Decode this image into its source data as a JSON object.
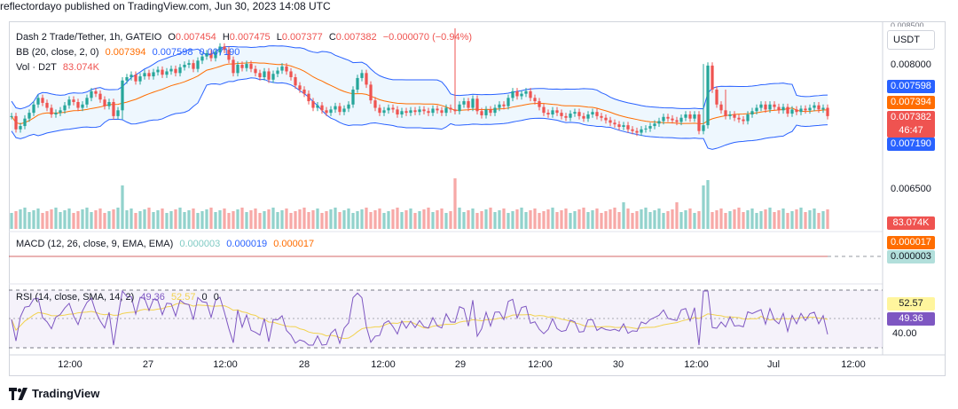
{
  "header": {
    "text": "reflectordayo published on TradingView.com, Jun 30, 2023 14:08 UTC"
  },
  "symbol": {
    "name": "Dash 2 Trade/Tether, 1h, GATEIO",
    "ohlc": {
      "o_label": "O",
      "o": "0.007454",
      "h_label": "H",
      "h": "0.007475",
      "l_label": "L",
      "l": "0.007377",
      "c_label": "C",
      "c": "0.007382",
      "chg": "−0.000070 (−0.94%)"
    }
  },
  "bb": {
    "label": "BB (20, close, 2, 0)",
    "basis": "0.007394",
    "upper": "0.007598",
    "lower": "0.007190"
  },
  "vol": {
    "label": "Vol · D2T",
    "value": "83.074K"
  },
  "macd": {
    "label": "MACD (12, 26, close, 9, EMA, EMA)",
    "hist": "0.000003",
    "macd": "0.000019",
    "signal": "0.000017"
  },
  "rsi": {
    "label": "RSI (14, close, SMA, 14, 2)",
    "rsi": "49.36",
    "sma": "52.57",
    "extra1": "0",
    "extra2": "0"
  },
  "price_axis": {
    "currency": "USDT",
    "top_partial": "0.008500",
    "p8000": "0.008000",
    "p6500": "0.006500",
    "upper_box": "0.007598",
    "basis_box": "0.007394",
    "last_box": "0.007382",
    "countdown": "46:47",
    "lower_box": "0.007190",
    "vol_box": "83.074K",
    "macd_box1": "0.000017",
    "macd_box2": "0.000003",
    "rsi_box1": "52.57",
    "rsi_box2": "49.36",
    "rsi40": "40.00"
  },
  "x_axis": [
    "12:00",
    "27",
    "12:00",
    "28",
    "12:00",
    "29",
    "12:00",
    "30",
    "12:00",
    "Jul",
    "12:00"
  ],
  "colors": {
    "up": "#26a69a",
    "down": "#ef5350",
    "bb_band": "#2962ff",
    "bb_basis": "#ff6d00",
    "rsi_line": "#7e57c2",
    "rsi_sma": "#f2d24f",
    "rsi_fill": "#7e57c2"
  },
  "footer": {
    "brand": "TradingView"
  },
  "chart_data": {
    "type": "candlestick",
    "title": "Dash 2 Trade/Tether, 1h, GATEIO",
    "last_close": 0.007382,
    "ylim_visible": [
      0.0062,
      0.0086
    ],
    "candles_close": [
      0.00738,
      0.00722,
      0.00726,
      0.00735,
      0.00742,
      0.00752,
      0.0076,
      0.00754,
      0.00748,
      0.0074,
      0.00742,
      0.00745,
      0.00751,
      0.00758,
      0.00755,
      0.00748,
      0.00752,
      0.0076,
      0.00768,
      0.00765,
      0.00758,
      0.0075,
      0.00755,
      0.00738,
      0.00745,
      0.00781,
      0.00785,
      0.00788,
      0.0078,
      0.00786,
      0.0079,
      0.00786,
      0.00791,
      0.00794,
      0.00788,
      0.00792,
      0.00795,
      0.0079,
      0.00797,
      0.008,
      0.00802,
      0.00795,
      0.00805,
      0.0081,
      0.00814,
      0.00808,
      0.00815,
      0.00822,
      0.00818,
      0.00806,
      0.0079,
      0.008,
      0.00796,
      0.00801,
      0.00795,
      0.0079,
      0.00785,
      0.00792,
      0.00782,
      0.00789,
      0.00793,
      0.00798,
      0.00792,
      0.00785,
      0.00775,
      0.0077,
      0.00765,
      0.00756,
      0.00748,
      0.00751,
      0.00745,
      0.00742,
      0.00746,
      0.0075,
      0.00743,
      0.00747,
      0.00752,
      0.0077,
      0.00784,
      0.0079,
      0.00776,
      0.00757,
      0.00748,
      0.00742,
      0.00745,
      0.00748,
      0.00746,
      0.0074,
      0.00744,
      0.00742,
      0.00745,
      0.00743,
      0.00746,
      0.00744,
      0.00742,
      0.00747,
      0.00745,
      0.00742,
      0.00748,
      0.00746,
      0.00744,
      0.00752,
      0.00756,
      0.00748,
      0.00759,
      0.00744,
      0.00739,
      0.00746,
      0.00742,
      0.00748,
      0.00752,
      0.0075,
      0.0076,
      0.00768,
      0.00762,
      0.00765,
      0.00768,
      0.0076,
      0.00756,
      0.00749,
      0.00742,
      0.0074,
      0.00745,
      0.00742,
      0.00738,
      0.00736,
      0.00741,
      0.00743,
      0.00738,
      0.00735,
      0.0074,
      0.00743,
      0.00738,
      0.00736,
      0.00733,
      0.0073,
      0.00728,
      0.00725,
      0.00727,
      0.00722,
      0.0072,
      0.00718,
      0.00722,
      0.00723,
      0.00726,
      0.00729,
      0.00732,
      0.00737,
      0.00735,
      0.00733,
      0.00731,
      0.00736,
      0.0074,
      0.00735,
      0.0074,
      0.0072,
      0.00727,
      0.00799,
      0.0077,
      0.00752,
      0.00745,
      0.00738,
      0.0074,
      0.00736,
      0.00734,
      0.00732,
      0.0074,
      0.00744,
      0.00748,
      0.00752,
      0.00746,
      0.00752,
      0.00749,
      0.00745,
      0.00749,
      0.00741,
      0.00746,
      0.00743,
      0.00747,
      0.00745,
      0.00748,
      0.00751,
      0.00746,
      0.00748,
      0.00738
    ]
  }
}
